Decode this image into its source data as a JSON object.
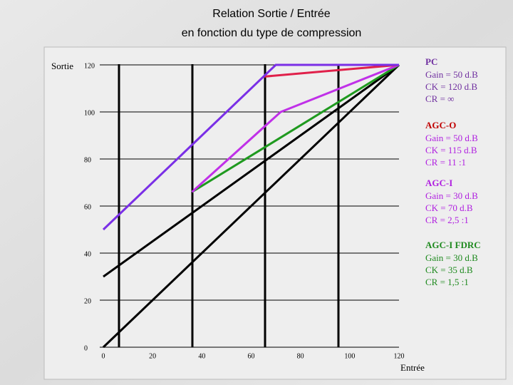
{
  "chart_data": {
    "type": "line",
    "title": "Relation Sortie / Entrée",
    "subtitle": "en fonction du type de compression",
    "y_label": "Sortie",
    "x_label": "Entrée",
    "xlim": [
      0,
      120
    ],
    "ylim": [
      0,
      120
    ],
    "xticks": [
      0,
      20,
      40,
      60,
      80,
      100,
      120
    ],
    "yticks": [
      0,
      20,
      40,
      60,
      80,
      100,
      120
    ],
    "grid": true,
    "series": [
      {
        "color": "#000000",
        "x": [
          0,
          120
        ],
        "values": [
          0,
          120
        ]
      },
      {
        "color": "#000000",
        "x": [
          0,
          120
        ],
        "values": [
          30,
          120
        ]
      },
      {
        "name": "AGC-I FDRC",
        "color": "#1f9a1f",
        "x": [
          36,
          120
        ],
        "values": [
          66,
          120
        ]
      },
      {
        "name": "AGC-I",
        "color": "#c030e8",
        "x": [
          36,
          72,
          120
        ],
        "values": [
          66,
          100,
          120
        ]
      },
      {
        "name": "AGC-O",
        "color": "#e0204a",
        "x": [
          65,
          120
        ],
        "values": [
          115,
          120
        ]
      },
      {
        "name": "PC",
        "color": "#7a2fe6",
        "x": [
          0,
          70,
          120
        ],
        "values": [
          50,
          120,
          120
        ]
      }
    ],
    "annotations": [
      {
        "title": "PC",
        "title_color": "#7030a0",
        "color": "#7030a0",
        "lines": [
          "Gain = 50 d.B",
          "CK = 120 d.B",
          "CR = ∞"
        ]
      },
      {
        "title": "AGC-O",
        "title_color": "#c00000",
        "color": "#b020e0",
        "lines": [
          "Gain = 50 d.B",
          "CK  = 115 d.B",
          "CR  = 11 :1"
        ]
      },
      {
        "title": "AGC-I",
        "title_color": "#b020e0",
        "color": "#b020e0",
        "lines": [
          "Gain = 30 d.B",
          "CK  = 70 d.B",
          "CR  =  2,5 :1"
        ]
      },
      {
        "title": "AGC-I FDRC",
        "title_color": "#1f8a1f",
        "color": "#1f8a1f",
        "lines": [
          "Gain = 30 d.B",
          "CK = 35 d.B",
          "CR = 1,5 :1"
        ]
      }
    ]
  }
}
